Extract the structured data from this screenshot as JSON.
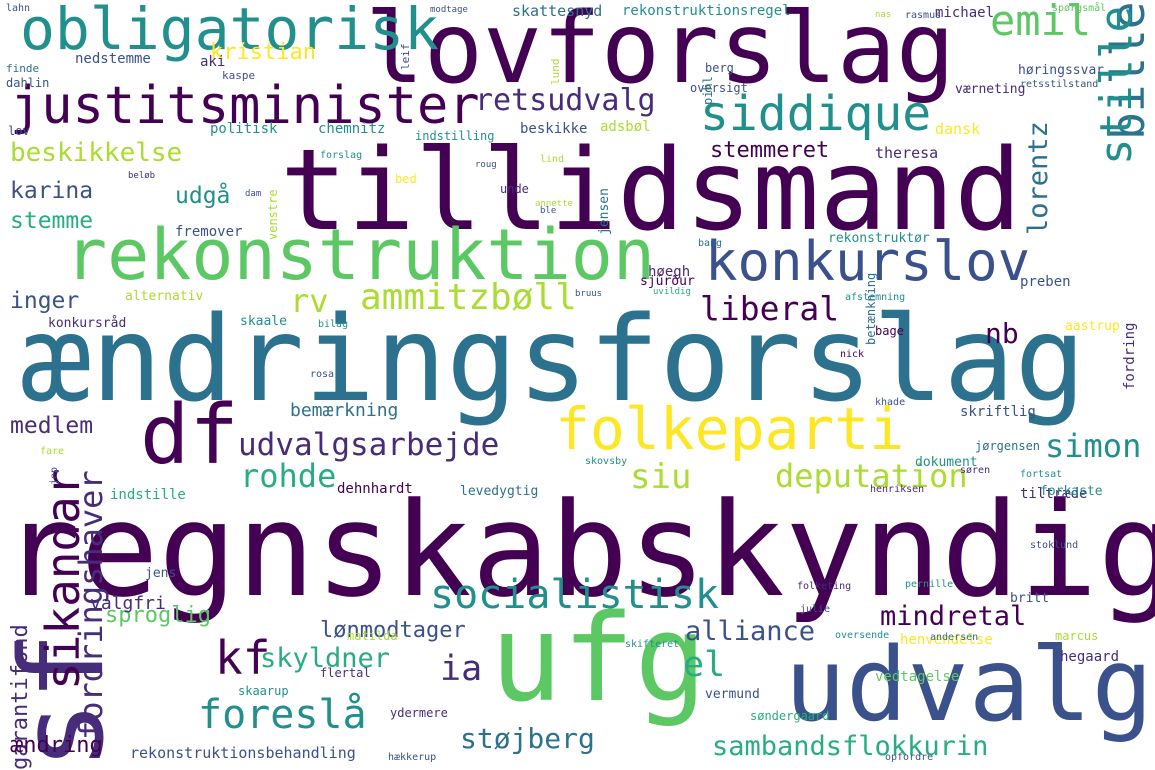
{
  "palette": {
    "background": "#ffffff",
    "viridis": [
      "#440154",
      "#472c7a",
      "#3b518b",
      "#2c718e",
      "#21908d",
      "#27ad81",
      "#5cc863",
      "#aadc32",
      "#fde725"
    ]
  },
  "words": [
    {
      "text": "regnskabskyndig",
      "color": "#440154"
    },
    {
      "text": "ændringsforslag",
      "color": "#2c718e"
    },
    {
      "text": "tillidsmand",
      "color": "#440154"
    },
    {
      "text": "lovforslag",
      "color": "#440154"
    },
    {
      "text": "ufg",
      "color": "#5cc863"
    },
    {
      "text": "udvalg",
      "color": "#3b518b"
    },
    {
      "text": "sf",
      "color": "#472c7a"
    },
    {
      "text": "df",
      "color": "#440154"
    },
    {
      "text": "rekonstruktion",
      "color": "#5cc863"
    },
    {
      "text": "obligatorisk",
      "color": "#21908d"
    },
    {
      "text": "justitsminister",
      "color": "#440154"
    },
    {
      "text": "konkurslov",
      "color": "#3b518b"
    },
    {
      "text": "folkeparti",
      "color": "#fde725"
    },
    {
      "text": "bille",
      "color": "#2c718e"
    },
    {
      "text": "stille",
      "color": "#21908d"
    },
    {
      "text": "siddique",
      "color": "#21908d"
    },
    {
      "text": "socialistisk",
      "color": "#21908d"
    },
    {
      "text": "sikandar",
      "color": "#440154"
    },
    {
      "text": "emil",
      "color": "#5cc863"
    },
    {
      "text": "ammitzbøll",
      "color": "#aadc32"
    },
    {
      "text": "kf",
      "color": "#440154"
    },
    {
      "text": "udvalgsarbejde",
      "color": "#472c7a"
    },
    {
      "text": "foreslå",
      "color": "#21908d"
    },
    {
      "text": "deputation",
      "color": "#aadc32"
    },
    {
      "text": "sambandsflokkurin",
      "color": "#27ad81"
    },
    {
      "text": "fordringshaver",
      "color": "#472c7a"
    },
    {
      "text": "beskikkelse",
      "color": "#aadc32"
    },
    {
      "text": "retsudvalg",
      "color": "#472c7a"
    },
    {
      "text": "lorentz",
      "color": "#2c718e"
    },
    {
      "text": "liberal",
      "color": "#440154"
    },
    {
      "text": "mindretal",
      "color": "#440154"
    },
    {
      "text": "alliance",
      "color": "#3b518b"
    },
    {
      "text": "el",
      "color": "#27ad81"
    },
    {
      "text": "ia",
      "color": "#472c7a"
    },
    {
      "text": "siu",
      "color": "#aadc32"
    },
    {
      "text": "simon",
      "color": "#21908d"
    },
    {
      "text": "rohde",
      "color": "#27ad81"
    },
    {
      "text": "støjberg",
      "color": "#2c718e"
    },
    {
      "text": "rv",
      "color": "#aadc32"
    },
    {
      "text": "nb",
      "color": "#440154"
    },
    {
      "text": "karina",
      "color": "#3b518b"
    },
    {
      "text": "stemme",
      "color": "#27ad81"
    },
    {
      "text": "udgå",
      "color": "#21908d"
    },
    {
      "text": "inger",
      "color": "#3b518b"
    },
    {
      "text": "medlem",
      "color": "#472c7a"
    },
    {
      "text": "kristian",
      "color": "#fde725"
    },
    {
      "text": "skyldner",
      "color": "#27ad81"
    },
    {
      "text": "lønmodtager",
      "color": "#3b518b"
    },
    {
      "text": "sproglig",
      "color": "#5cc863"
    },
    {
      "text": "garantifond",
      "color": "#472c7a"
    },
    {
      "text": "ændring",
      "color": "#440154"
    },
    {
      "text": "stemmeret",
      "color": "#440154"
    },
    {
      "text": "bemærkning",
      "color": "#2c718e"
    },
    {
      "text": "valgfri",
      "color": "#472c7a"
    },
    {
      "text": "rekonstruktionsbehandling",
      "color": "#3b518b"
    },
    {
      "text": "skattesnyd",
      "color": "#2c718e"
    },
    {
      "text": "rekonstruktionsregel",
      "color": "#21908d"
    },
    {
      "text": "nedstemme",
      "color": "#3b518b"
    },
    {
      "text": "aki",
      "color": "#472c7a"
    },
    {
      "text": "michael",
      "color": "#472c7a"
    },
    {
      "text": "høringssvar",
      "color": "#3b518b"
    },
    {
      "text": "værneting",
      "color": "#472c7a"
    },
    {
      "text": "politisk",
      "color": "#21908d"
    },
    {
      "text": "chemnitz",
      "color": "#21908d"
    },
    {
      "text": "beskikke",
      "color": "#3b518b"
    },
    {
      "text": "adsbøl",
      "color": "#aadc32"
    },
    {
      "text": "dansk",
      "color": "#fde725"
    },
    {
      "text": "theresa",
      "color": "#472c7a"
    },
    {
      "text": "fremover",
      "color": "#3b518b"
    },
    {
      "text": "jensen",
      "color": "#2c718e"
    },
    {
      "text": "høegh",
      "color": "#472c7a"
    },
    {
      "text": "rekonstruktør",
      "color": "#21908d"
    },
    {
      "text": "sjúrður",
      "color": "#440154"
    },
    {
      "text": "preben",
      "color": "#3b518b"
    },
    {
      "text": "alternativ",
      "color": "#aadc32"
    },
    {
      "text": "konkursråd",
      "color": "#472c7a"
    },
    {
      "text": "skaale",
      "color": "#21908d"
    },
    {
      "text": "bage",
      "color": "#440154"
    },
    {
      "text": "aastrup",
      "color": "#fde725"
    },
    {
      "text": "betænkning",
      "color": "#2c718e"
    },
    {
      "text": "fordring",
      "color": "#472c7a"
    },
    {
      "text": "skriftlig",
      "color": "#3b518b"
    },
    {
      "text": "jørgensen",
      "color": "#2c718e"
    },
    {
      "text": "dehnhardt",
      "color": "#440154"
    },
    {
      "text": "levedygtig",
      "color": "#2c718e"
    },
    {
      "text": "indstille",
      "color": "#27ad81"
    },
    {
      "text": "tiltræde",
      "color": "#472c7a"
    },
    {
      "text": "jens",
      "color": "#3b518b"
    },
    {
      "text": "britt",
      "color": "#3b518b"
    },
    {
      "text": "matilda",
      "color": "#aadc32"
    },
    {
      "text": "marcus",
      "color": "#aadc32"
    },
    {
      "text": "hegaard",
      "color": "#472c7a"
    },
    {
      "text": "flertal",
      "color": "#472c7a"
    },
    {
      "text": "vedtagelse",
      "color": "#5cc863"
    },
    {
      "text": "henvendelse",
      "color": "#fde725"
    },
    {
      "text": "vermund",
      "color": "#3b518b"
    },
    {
      "text": "ydermere",
      "color": "#472c7a"
    },
    {
      "text": "søndergaard",
      "color": "#27ad81"
    },
    {
      "text": "skaarup",
      "color": "#21908d"
    },
    {
      "text": "dokument",
      "color": "#21908d"
    },
    {
      "text": "forkaste",
      "color": "#21908d"
    },
    {
      "text": "unde",
      "color": "#472c7a"
    },
    {
      "text": "bed",
      "color": "#fde725"
    },
    {
      "text": "venstre",
      "color": "#aadc32"
    },
    {
      "text": "lov",
      "color": "#3b518b"
    },
    {
      "text": "indstilling",
      "color": "#21908d"
    },
    {
      "text": "oversigt",
      "color": "#3b518b"
    },
    {
      "text": "pihl",
      "color": "#2c718e"
    },
    {
      "text": "lund",
      "color": "#aadc32"
    },
    {
      "text": "berg",
      "color": "#3b518b"
    },
    {
      "text": "kaspe",
      "color": "#3b518b"
    },
    {
      "text": "dahlin",
      "color": "#3b518b"
    },
    {
      "text": "finde",
      "color": "#2c718e"
    },
    {
      "text": "lahn",
      "color": "#3b518b"
    },
    {
      "text": "leif",
      "color": "#3b518b"
    },
    {
      "text": "modtage",
      "color": "#3b518b"
    },
    {
      "text": "nas",
      "color": "#aadc32"
    },
    {
      "text": "rasmus",
      "color": "#3b518b"
    },
    {
      "text": "spørgsmål",
      "color": "#5cc863"
    },
    {
      "text": "retsstilstand",
      "color": "#3b518b"
    },
    {
      "text": "bang",
      "color": "#2c718e"
    },
    {
      "text": "afstemning",
      "color": "#21908d"
    },
    {
      "text": "fortsat",
      "color": "#21908d"
    },
    {
      "text": "søren",
      "color": "#472c7a"
    },
    {
      "text": "nick",
      "color": "#440154"
    },
    {
      "text": "khade",
      "color": "#3b518b"
    },
    {
      "text": "rosa",
      "color": "#3b518b"
    },
    {
      "text": "skovsby",
      "color": "#21908d"
    },
    {
      "text": "henriksen",
      "color": "#472c7a"
    },
    {
      "text": "stoklund",
      "color": "#3b518b"
    },
    {
      "text": "folketing",
      "color": "#472c7a"
    },
    {
      "text": "pernille",
      "color": "#21908d"
    },
    {
      "text": "julie",
      "color": "#3b518b"
    },
    {
      "text": "skifteret",
      "color": "#21908d"
    },
    {
      "text": "oversende",
      "color": "#21908d"
    },
    {
      "text": "andersen",
      "color": "#2c718e"
    },
    {
      "text": "hækkerup",
      "color": "#3b518b"
    },
    {
      "text": "opfordre",
      "color": "#3b518b"
    },
    {
      "text": "fare",
      "color": "#aadc32"
    },
    {
      "text": "jep",
      "color": "#3b518b"
    },
    {
      "text": "bilag",
      "color": "#21908d"
    },
    {
      "text": "uvildig",
      "color": "#27ad81"
    },
    {
      "text": "bruus",
      "color": "#3b518b"
    },
    {
      "text": "lind",
      "color": "#aadc32"
    },
    {
      "text": "dam",
      "color": "#3b518b"
    },
    {
      "text": "annette",
      "color": "#aadc32"
    },
    {
      "text": "ble",
      "color": "#3b518b"
    },
    {
      "text": "beløb",
      "color": "#472c7a"
    },
    {
      "text": "forslag",
      "color": "#21908d"
    },
    {
      "text": "roug",
      "color": "#3b518b"
    }
  ]
}
